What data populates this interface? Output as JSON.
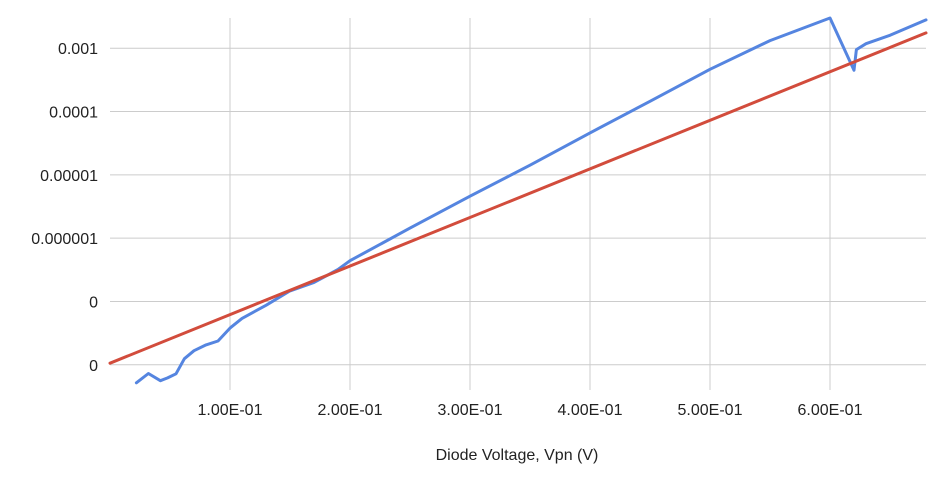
{
  "chart_data": {
    "type": "line",
    "title": "",
    "xlabel": "Diode Voltage, Vpn (V)",
    "ylabel": "",
    "x_scale": "linear",
    "y_scale": "log",
    "xlim": [
      0.0,
      0.68
    ],
    "ylim": [
      4e-09,
      0.003
    ],
    "grid": true,
    "legend": "none",
    "x_ticks": [
      {
        "value": 0.1,
        "label": "1.00E-01"
      },
      {
        "value": 0.2,
        "label": "2.00E-01"
      },
      {
        "value": 0.3,
        "label": "3.00E-01"
      },
      {
        "value": 0.4,
        "label": "4.00E-01"
      },
      {
        "value": 0.5,
        "label": "5.00E-01"
      },
      {
        "value": 0.6,
        "label": "6.00E-01"
      }
    ],
    "y_ticks": [
      {
        "value": 0.001,
        "label": "0.001"
      },
      {
        "value": 0.0001,
        "label": "0.0001"
      },
      {
        "value": 1e-05,
        "label": "0.00001"
      },
      {
        "value": 1e-06,
        "label": "0.000001"
      },
      {
        "value": 1e-07,
        "label": "0"
      },
      {
        "value": 1e-08,
        "label": "0"
      }
    ],
    "series": [
      {
        "color": "#5585e0",
        "x": [
          0.022,
          0.032,
          0.042,
          0.048,
          0.055,
          0.062,
          0.07,
          0.08,
          0.09,
          0.1,
          0.11,
          0.13,
          0.15,
          0.17,
          0.19,
          0.2,
          0.25,
          0.3,
          0.35,
          0.4,
          0.45,
          0.5,
          0.55,
          0.6,
          0.62,
          0.622,
          0.63,
          0.65,
          0.68
        ],
        "y": [
          5.2e-09,
          7.3e-09,
          5.6e-09,
          6.2e-09,
          7.2e-09,
          1.25e-08,
          1.67e-08,
          2.06e-08,
          2.38e-08,
          3.8e-08,
          5.4e-08,
          8.7e-08,
          1.47e-07,
          2e-07,
          3.2e-07,
          4.4e-07,
          1.44e-06,
          4.6e-06,
          1.42e-05,
          4.6e-05,
          0.000145,
          0.000465,
          0.00132,
          0.0033,
          0.00045,
          0.00095,
          0.00118,
          0.0016,
          0.0028
        ]
      },
      {
        "color": "#d24c3c",
        "x": [
          0.0,
          0.68
        ],
        "y": [
          1.06e-08,
          0.001747
        ]
      }
    ]
  }
}
